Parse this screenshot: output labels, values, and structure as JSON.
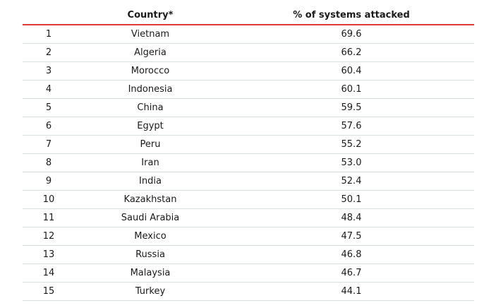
{
  "table": {
    "headers": {
      "rank": "",
      "country": "Country*",
      "percent": "% of systems attacked"
    },
    "rows": [
      {
        "rank": "1",
        "country": "Vietnam",
        "percent": "69.6"
      },
      {
        "rank": "2",
        "country": "Algeria",
        "percent": "66.2"
      },
      {
        "rank": "3",
        "country": "Morocco",
        "percent": "60.4"
      },
      {
        "rank": "4",
        "country": "Indonesia",
        "percent": "60.1"
      },
      {
        "rank": "5",
        "country": "China",
        "percent": "59.5"
      },
      {
        "rank": "6",
        "country": "Egypt",
        "percent": "57.6"
      },
      {
        "rank": "7",
        "country": "Peru",
        "percent": "55.2"
      },
      {
        "rank": "8",
        "country": "Iran",
        "percent": "53.0"
      },
      {
        "rank": "9",
        "country": "India",
        "percent": "52.4"
      },
      {
        "rank": "10",
        "country": "Kazakhstan",
        "percent": "50.1"
      },
      {
        "rank": "11",
        "country": "Saudi Arabia",
        "percent": "48.4"
      },
      {
        "rank": "12",
        "country": "Mexico",
        "percent": "47.5"
      },
      {
        "rank": "13",
        "country": "Russia",
        "percent": "46.8"
      },
      {
        "rank": "14",
        "country": "Malaysia",
        "percent": "46.7"
      },
      {
        "rank": "15",
        "country": "Turkey",
        "percent": "44.1"
      }
    ]
  },
  "colors": {
    "header_rule": "#e03a3c",
    "row_rule": "#d8dde0",
    "text": "#1a1a1a"
  }
}
